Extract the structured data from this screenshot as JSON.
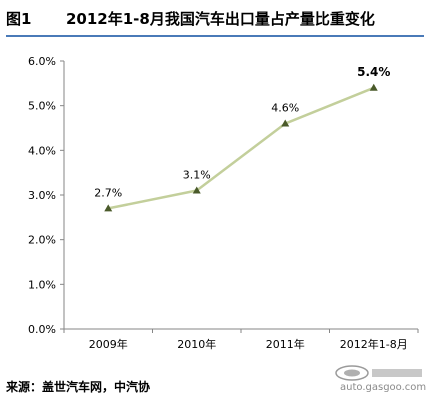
{
  "header": {
    "figure_label": "图1",
    "title": "2012年1-8月我国汽车出口量占产量比重变化"
  },
  "chart_data": {
    "type": "line",
    "categories": [
      "2009年",
      "2010年",
      "2011年",
      "2012年1-8月"
    ],
    "values": [
      2.7,
      3.1,
      4.6,
      5.4
    ],
    "data_labels": [
      "2.7%",
      "3.1%",
      "4.6%",
      "5.4%"
    ],
    "ylim": [
      0,
      6
    ],
    "yticks": [
      "0.0%",
      "1.0%",
      "2.0%",
      "3.0%",
      "4.0%",
      "5.0%",
      "6.0%"
    ],
    "grid": false,
    "line_color": "#c3cf9b",
    "marker_color": "#4a5a2a"
  },
  "footer": {
    "source": "来源：盖世汽车网，中汽协",
    "watermark_text": "auto.gasgoo.com"
  }
}
